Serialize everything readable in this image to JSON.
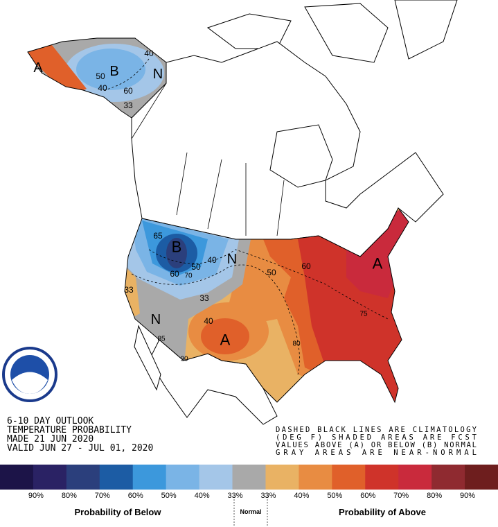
{
  "header": {
    "lines": [
      "6-10 DAY OUTLOOK",
      "TEMPERATURE PROBABILITY",
      "MADE  21 JUN 2020",
      "VALID  JUN 27 - JUL 01, 2020"
    ]
  },
  "note": {
    "lines": [
      "DASHED BLACK LINES ARE CLIMATOLOGY",
      "(DEG F) SHADED AREAS ARE FCST",
      "VALUES ABOVE (A) OR BELOW (B) NORMAL",
      "GRAY AREAS ARE NEAR-NORMAL"
    ]
  },
  "map": {
    "labels": [
      "A",
      "B",
      "40",
      "50",
      "N",
      "40",
      "60",
      "33",
      "65",
      "B",
      "40",
      "N",
      "50",
      "60",
      "70",
      "33",
      "50",
      "60",
      "A",
      "33",
      "40",
      "N",
      "A",
      "85",
      "80",
      "75",
      "90"
    ]
  },
  "legend": {
    "colors": [
      "#1c1448",
      "#2a2264",
      "#2b3f7c",
      "#1c5ca4",
      "#3c98dc",
      "#7ab4e6",
      "#a4c6e8",
      "#a9a9a9",
      "#e9b264",
      "#e88c42",
      "#e0602a",
      "#cf332a",
      "#c92a3c",
      "#8f2a30",
      "#6e1e1e"
    ],
    "labels": [
      "90%",
      "80%",
      "70%",
      "60%",
      "50%",
      "40%",
      "33%",
      "33%",
      "40%",
      "50%",
      "60%",
      "70%",
      "80%",
      "90%"
    ],
    "below_label": "Probability of Below",
    "normal_label": "Normal",
    "above_label": "Probability of Above"
  }
}
